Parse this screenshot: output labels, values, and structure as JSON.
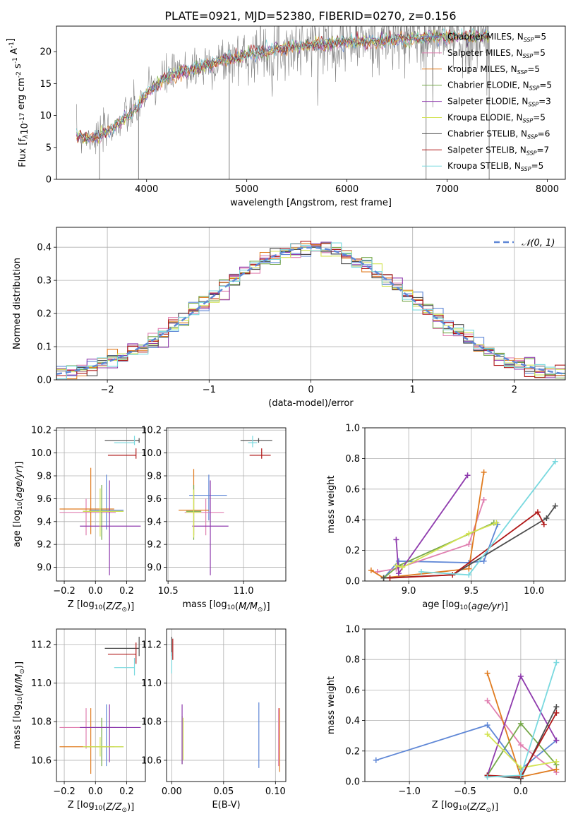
{
  "figure": {
    "title": "PLATE=0921, MJD=52380, FIBERID=0270, z=0.156"
  },
  "colors": {
    "Chabrier MILES": "#5f87d6",
    "Salpeter MILES": "#e07fb0",
    "Kroupa MILES": "#e07b1f",
    "Chabrier ELODIE": "#76a84a",
    "Salpeter ELODIE": "#8e3aad",
    "Kroupa ELODIE": "#d3e353",
    "Chabrier STELIB": "#4d4d4d",
    "Salpeter STELIB": "#b01818",
    "Kroupa STELIB": "#79d9df",
    "data": "#808080",
    "normal": "#5f87d6"
  },
  "chart_data": [
    {
      "id": "spectrum",
      "type": "line",
      "xlabel": "wavelength [Angstrom, rest frame]",
      "ylabel": "Flux [f_λ10^-17 erg cm^-2 s^-1 A^-1]",
      "xlim": [
        3100,
        8180
      ],
      "ylim": [
        0,
        24
      ],
      "xticks": [
        "4000",
        "5000",
        "6000",
        "7000",
        "8000"
      ],
      "yticks": [
        "0",
        "5",
        "10",
        "15",
        "20"
      ],
      "grid": false,
      "legend_position": "right",
      "legend": [
        {
          "model": "Chabrier MILES",
          "label": "Chabrier MILES, N",
          "sub": "SSP",
          "tail": "=5"
        },
        {
          "model": "Salpeter MILES",
          "label": "Salpeter MILES, N",
          "sub": "SSP",
          "tail": "=5"
        },
        {
          "model": "Kroupa MILES",
          "label": "Kroupa MILES, N",
          "sub": "SSP",
          "tail": "=5"
        },
        {
          "model": "Chabrier ELODIE",
          "label": "Chabrier ELODIE, N",
          "sub": "SSP",
          "tail": "=5"
        },
        {
          "model": "Salpeter ELODIE",
          "label": "Salpeter ELODIE, N",
          "sub": "SSP",
          "tail": "=3"
        },
        {
          "model": "Kroupa ELODIE",
          "label": "Kroupa ELODIE, N",
          "sub": "SSP",
          "tail": "=5"
        },
        {
          "model": "Chabrier STELIB",
          "label": "Chabrier STELIB, N",
          "sub": "SSP",
          "tail": "=6"
        },
        {
          "model": "Salpeter STELIB",
          "label": "Salpeter STELIB, N",
          "sub": "SSP",
          "tail": "=7"
        },
        {
          "model": "Kroupa STELIB",
          "label": "Kroupa STELIB, N",
          "sub": "SSP",
          "tail": "=5"
        }
      ],
      "continuum": [
        [
          3300,
          6.8
        ],
        [
          3500,
          6.5
        ],
        [
          3700,
          8.5
        ],
        [
          3900,
          11
        ],
        [
          4000,
          13.5
        ],
        [
          4200,
          16
        ],
        [
          4500,
          17.5
        ],
        [
          4800,
          18.7
        ],
        [
          5000,
          19.5
        ],
        [
          5300,
          20.3
        ],
        [
          5600,
          21
        ],
        [
          6000,
          21.5
        ],
        [
          6400,
          21.8
        ],
        [
          6800,
          22.2
        ],
        [
          7200,
          22.3
        ],
        [
          7420,
          22.4
        ]
      ],
      "spikes": [
        [
          3530,
          0
        ],
        [
          3920,
          0
        ],
        [
          4825,
          0
        ],
        [
          6790,
          0
        ],
        [
          7420,
          0
        ]
      ]
    },
    {
      "id": "residuals",
      "type": "area",
      "xlabel": "(data-model)/error",
      "ylabel": "Normed distribution",
      "xlim": [
        -2.5,
        2.5
      ],
      "ylim": [
        0,
        0.46
      ],
      "xticks": [
        "−2",
        "−1",
        "0",
        "1",
        "2"
      ],
      "yticks": [
        "0.0",
        "0.1",
        "0.2",
        "0.3",
        "0.4"
      ],
      "grid": true,
      "legend_position": "top-right",
      "legend_label": "𝒩(0, 1)",
      "curve": "normal pdf, mean 0, sigma 1",
      "bin_width": 0.1
    },
    {
      "id": "age_vs_Z",
      "type": "scatter",
      "xlabel": "Z [log10(Z/Z⊙)]",
      "ylabel": "age  [log10(age/yr)]",
      "xlim": [
        -0.25,
        0.32
      ],
      "ylim": [
        8.88,
        10.22
      ],
      "xticks": [
        "−0.2",
        "0.0",
        "0.2"
      ],
      "yticks": [
        "9.0",
        "9.2",
        "9.4",
        "9.6",
        "9.8",
        "10.0",
        "10.2"
      ],
      "grid": true,
      "points": [
        {
          "model": "Chabrier MILES",
          "x": 0.07,
          "xerr": [
            0.11,
            0.11
          ],
          "y": 9.5,
          "yerr": [
            0.17,
            0.31
          ]
        },
        {
          "model": "Salpeter MILES",
          "x": -0.06,
          "xerr": [
            0.17,
            0.19
          ],
          "y": 9.48,
          "yerr": [
            0.2,
            0.12
          ]
        },
        {
          "model": "Kroupa MILES",
          "x": -0.03,
          "xerr": [
            0.2,
            0.15
          ],
          "y": 9.51,
          "yerr": [
            0.22,
            0.36
          ]
        },
        {
          "model": "Chabrier ELODIE",
          "x": 0.04,
          "xerr": [
            0.12,
            0.14
          ],
          "y": 9.49,
          "yerr": [
            0.25,
            0.23
          ]
        },
        {
          "model": "Salpeter ELODIE",
          "x": 0.09,
          "xerr": [
            0.19,
            0.2
          ],
          "y": 9.36,
          "yerr": [
            0.43,
            0.4
          ]
        },
        {
          "model": "Kroupa ELODIE",
          "x": 0.03,
          "xerr": [
            0.11,
            0.15
          ],
          "y": 9.49,
          "yerr": [
            0.22,
            0.2
          ]
        },
        {
          "model": "Chabrier STELIB",
          "x": 0.28,
          "xerr": [
            0.22,
            0.0
          ],
          "y": 10.11,
          "yerr": [
            0.02,
            0.02
          ]
        },
        {
          "model": "Salpeter STELIB",
          "x": 0.26,
          "xerr": [
            0.18,
            0.0
          ],
          "y": 9.98,
          "yerr": [
            0.03,
            0.06
          ]
        },
        {
          "model": "Kroupa STELIB",
          "x": 0.25,
          "xerr": [
            0.13,
            0.0
          ],
          "y": 10.09,
          "yerr": [
            0.02,
            0.06
          ]
        }
      ]
    },
    {
      "id": "age_vs_mass",
      "type": "scatter",
      "xlabel": "mass [log10(M/M⊙)]",
      "ylabel": "",
      "xlim": [
        10.49,
        11.28
      ],
      "ylim": [
        8.88,
        10.22
      ],
      "xticks": [
        "10.5",
        "11.0"
      ],
      "yticks": [
        "9.0",
        "9.2",
        "9.4",
        "9.6",
        "9.8",
        "10.0",
        "10.2"
      ],
      "grid": true,
      "points": [
        {
          "model": "Chabrier MILES",
          "x": 10.77,
          "xerr": [
            0.13,
            0.12
          ],
          "y": 9.63,
          "yerr": [
            0.22,
            0.18
          ]
        },
        {
          "model": "Salpeter MILES",
          "x": 10.75,
          "xerr": [
            0.14,
            0.12
          ],
          "y": 9.48,
          "yerr": [
            0.2,
            0.12
          ]
        },
        {
          "model": "Kroupa MILES",
          "x": 10.67,
          "xerr": [
            0.1,
            0.1
          ],
          "y": 9.5,
          "yerr": [
            0.22,
            0.36
          ]
        },
        {
          "model": "Chabrier ELODIE",
          "x": 10.67,
          "xerr": [
            0.05,
            0.05
          ],
          "y": 9.49,
          "yerr": [
            0.25,
            0.23
          ]
        },
        {
          "model": "Salpeter ELODIE",
          "x": 10.78,
          "xerr": [
            0.12,
            0.12
          ],
          "y": 9.36,
          "yerr": [
            0.43,
            0.4
          ]
        },
        {
          "model": "Kroupa ELODIE",
          "x": 10.67,
          "xerr": [
            0.05,
            0.05
          ],
          "y": 9.48,
          "yerr": [
            0.22,
            0.2
          ]
        },
        {
          "model": "Chabrier STELIB",
          "x": 11.1,
          "xerr": [
            0.12,
            0.09
          ],
          "y": 10.11,
          "yerr": [
            0.02,
            0.02
          ]
        },
        {
          "model": "Salpeter STELIB",
          "x": 11.12,
          "xerr": [
            0.08,
            0.06
          ],
          "y": 9.98,
          "yerr": [
            0.03,
            0.06
          ]
        },
        {
          "model": "Kroupa STELIB",
          "x": 11.06,
          "xerr": [
            0.03,
            0.03
          ],
          "y": 10.09,
          "yerr": [
            0.04,
            0.06
          ]
        }
      ]
    },
    {
      "id": "weight_vs_age",
      "type": "line",
      "xlabel": "age  [log10(age/yr)]",
      "ylabel": "mass weight",
      "xlim": [
        8.65,
        10.25
      ],
      "ylim": [
        0,
        1.0
      ],
      "xticks": [
        "9.0",
        "9.5",
        "10.0"
      ],
      "yticks": [
        "0.0",
        "0.2",
        "0.4",
        "0.6",
        "0.8",
        "1.0"
      ],
      "grid": true,
      "series": [
        {
          "model": "Chabrier MILES",
          "x": [
            8.8,
            8.92,
            9.48,
            9.6,
            9.71
          ],
          "y": [
            0.02,
            0.13,
            0.12,
            0.13,
            0.37
          ]
        },
        {
          "model": "Salpeter MILES",
          "x": [
            8.75,
            8.9,
            9.48,
            9.6
          ],
          "y": [
            0.06,
            0.08,
            0.24,
            0.53
          ]
        },
        {
          "model": "Kroupa MILES",
          "x": [
            8.7,
            8.8,
            9.48,
            9.6
          ],
          "y": [
            0.07,
            0.02,
            0.08,
            0.71
          ]
        },
        {
          "model": "Chabrier ELODIE",
          "x": [
            8.8,
            8.92,
            9.68
          ],
          "y": [
            0.02,
            0.1,
            0.38
          ]
        },
        {
          "model": "Salpeter ELODIE",
          "x": [
            8.9,
            8.92,
            9.47
          ],
          "y": [
            0.27,
            0.05,
            0.69
          ]
        },
        {
          "model": "Kroupa ELODIE",
          "x": [
            8.9,
            8.95,
            9.48,
            9.7
          ],
          "y": [
            0.1,
            0.09,
            0.31,
            0.38
          ]
        },
        {
          "model": "Chabrier STELIB",
          "x": [
            8.8,
            9.35,
            10.1,
            10.17
          ],
          "y": [
            0.02,
            0.04,
            0.41,
            0.49
          ]
        },
        {
          "model": "Salpeter STELIB",
          "x": [
            8.85,
            9.35,
            10.03,
            10.08
          ],
          "y": [
            0.02,
            0.04,
            0.45,
            0.37
          ]
        },
        {
          "model": "Kroupa STELIB",
          "x": [
            9.1,
            9.48,
            10.17
          ],
          "y": [
            0.06,
            0.04,
            0.78
          ]
        }
      ]
    },
    {
      "id": "mass_vs_Z",
      "type": "scatter",
      "xlabel": "Z [log10(Z/Z⊙)]",
      "ylabel": "mass [log10(M/M⊙)]",
      "xlim": [
        -0.25,
        0.32
      ],
      "ylim": [
        10.49,
        11.28
      ],
      "xticks": [
        "−0.2",
        "0.0",
        "0.2"
      ],
      "yticks": [
        "10.6",
        "10.8",
        "11.0",
        "11.2"
      ],
      "grid": true,
      "points": [
        {
          "model": "Chabrier MILES",
          "x": 0.07,
          "xerr": [
            0.11,
            0.11
          ],
          "y": 10.77,
          "yerr": [
            0.2,
            0.12
          ]
        },
        {
          "model": "Salpeter MILES",
          "x": -0.06,
          "xerr": [
            0.17,
            0.19
          ],
          "y": 10.77,
          "yerr": [
            0.11,
            0.1
          ]
        },
        {
          "model": "Kroupa MILES",
          "x": -0.03,
          "xerr": [
            0.2,
            0.15
          ],
          "y": 10.67,
          "yerr": [
            0.14,
            0.2
          ]
        },
        {
          "model": "Chabrier ELODIE",
          "x": 0.04,
          "xerr": [
            0.12,
            0.14
          ],
          "y": 10.67,
          "yerr": [
            0.1,
            0.15
          ]
        },
        {
          "model": "Salpeter ELODIE",
          "x": 0.09,
          "xerr": [
            0.19,
            0.2
          ],
          "y": 10.77,
          "yerr": [
            0.18,
            0.12
          ]
        },
        {
          "model": "Kroupa ELODIE",
          "x": 0.03,
          "xerr": [
            0.11,
            0.15
          ],
          "y": 10.67,
          "yerr": [
            0.05,
            0.05
          ]
        },
        {
          "model": "Chabrier STELIB",
          "x": 0.28,
          "xerr": [
            0.22,
            0.0
          ],
          "y": 11.18,
          "yerr": [
            0.04,
            0.06
          ]
        },
        {
          "model": "Salpeter STELIB",
          "x": 0.26,
          "xerr": [
            0.18,
            0.0
          ],
          "y": 11.15,
          "yerr": [
            0.05,
            0.06
          ]
        },
        {
          "model": "Kroupa STELIB",
          "x": 0.25,
          "xerr": [
            0.13,
            0.0
          ],
          "y": 11.08,
          "yerr": [
            0.04,
            0.05
          ]
        }
      ]
    },
    {
      "id": "mass_vs_ebv",
      "type": "scatter",
      "xlabel": "E(B-V)",
      "ylabel": "",
      "xlim": [
        -0.005,
        0.11
      ],
      "ylim": [
        10.49,
        11.28
      ],
      "xticks": [
        "0.00",
        "0.05",
        "0.10"
      ],
      "yticks": [
        "10.6",
        "10.8",
        "11.0",
        "11.2"
      ],
      "grid": true,
      "points": [
        {
          "model": "Chabrier MILES",
          "x": 0.084,
          "y": 10.73,
          "yerr": [
            0.17,
            0.17
          ]
        },
        {
          "model": "Salpeter MILES",
          "x": 0.103,
          "y": 10.72,
          "yerr": [
            0.15,
            0.15
          ]
        },
        {
          "model": "Kroupa MILES",
          "x": 0.104,
          "y": 10.7,
          "yerr": [
            0.16,
            0.17
          ]
        },
        {
          "model": "Chabrier ELODIE",
          "x": 0.01,
          "y": 10.73,
          "yerr": [
            0.15,
            0.1
          ]
        },
        {
          "model": "Salpeter ELODIE",
          "x": 0.01,
          "y": 10.73,
          "yerr": [
            0.15,
            0.16
          ]
        },
        {
          "model": "Kroupa ELODIE",
          "x": 0.011,
          "y": 10.72,
          "yerr": [
            0.12,
            0.1
          ]
        },
        {
          "model": "Chabrier STELIB",
          "x": 0.0,
          "y": 11.18,
          "yerr": [
            0.04,
            0.06
          ]
        },
        {
          "model": "Salpeter STELIB",
          "x": 0.001,
          "y": 11.16,
          "yerr": [
            0.04,
            0.07
          ]
        },
        {
          "model": "Kroupa STELIB",
          "x": 0.0,
          "y": 11.1,
          "yerr": [
            0.05,
            0.06
          ]
        }
      ]
    },
    {
      "id": "weight_vs_Z",
      "type": "line",
      "xlabel": "Z [log10(Z/Z⊙)]",
      "ylabel": "mass weight",
      "xlim": [
        -1.4,
        0.4
      ],
      "ylim": [
        0,
        1.0
      ],
      "xticks": [
        "−1.0",
        "−0.5",
        "0.0"
      ],
      "yticks": [
        "0.0",
        "0.2",
        "0.4",
        "0.6",
        "0.8",
        "1.0"
      ],
      "grid": true,
      "series": [
        {
          "model": "Chabrier MILES",
          "x": [
            -1.3,
            -0.3,
            0.0,
            0.32
          ],
          "y": [
            0.14,
            0.37,
            0.08,
            0.27
          ]
        },
        {
          "model": "Salpeter MILES",
          "x": [
            -0.3,
            0.0,
            0.32
          ],
          "y": [
            0.53,
            0.24,
            0.06
          ]
        },
        {
          "model": "Kroupa MILES",
          "x": [
            -0.3,
            0.0,
            0.32
          ],
          "y": [
            0.71,
            0.03,
            0.08
          ]
        },
        {
          "model": "Chabrier ELODIE",
          "x": [
            -0.3,
            0.0,
            0.32
          ],
          "y": [
            0.04,
            0.38,
            0.11
          ]
        },
        {
          "model": "Salpeter ELODIE",
          "x": [
            -0.3,
            0.0,
            0.32
          ],
          "y": [
            0.04,
            0.69,
            0.27
          ]
        },
        {
          "model": "Kroupa ELODIE",
          "x": [
            -0.3,
            0.0,
            0.32
          ],
          "y": [
            0.31,
            0.09,
            0.13
          ]
        },
        {
          "model": "Chabrier STELIB",
          "x": [
            -0.3,
            0.0,
            0.32
          ],
          "y": [
            0.04,
            0.02,
            0.49
          ]
        },
        {
          "model": "Salpeter STELIB",
          "x": [
            -0.3,
            0.0,
            0.32
          ],
          "y": [
            0.04,
            0.03,
            0.45
          ]
        },
        {
          "model": "Kroupa STELIB",
          "x": [
            -0.3,
            0.0,
            0.32
          ],
          "y": [
            0.03,
            0.04,
            0.78
          ]
        }
      ]
    }
  ]
}
